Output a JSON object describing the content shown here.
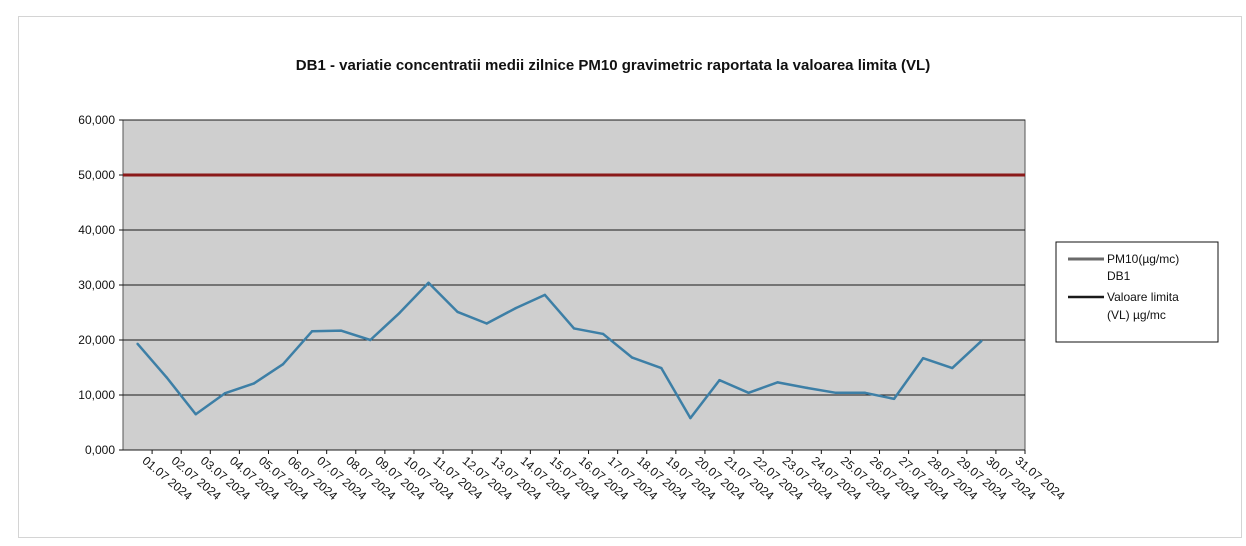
{
  "chart_data": {
    "type": "line",
    "title": "DB1 - variatie concentratii medii zilnice  PM10 gravimetric raportata la valoarea limita (VL)",
    "xlabel": "",
    "ylabel": "",
    "categories": [
      "01.07 2024",
      "02.07 2024",
      "03.07 2024",
      "04.07 2024",
      "05.07 2024",
      "06.07 2024",
      "07.07 2024",
      "08.07 2024",
      "09.07 2024",
      "10.07 2024",
      "11.07 2024",
      "12.07 2024",
      "13.07 2024",
      "14.07 2024",
      "15.07 2024",
      "16.07 2024",
      "17.07 2024",
      "18.07 2024",
      "19.07 2024",
      "20.07 2024",
      "21.07 2024",
      "22.07 2024",
      "23.07 2024",
      "24.07 2024",
      "25.07 2024",
      "26.07 2024",
      "27.07 2024",
      "28.07 2024",
      "29.07 2024",
      "30.07 2024",
      "31.07 2024"
    ],
    "ylim": [
      0,
      60
    ],
    "yticks": [
      "0,000",
      "10,000",
      "20,000",
      "30,000",
      "40,000",
      "50,000",
      "60,000"
    ],
    "grid": true,
    "legend_position": "right",
    "series": [
      {
        "name": "PM10(µg/mc) DB1",
        "legend_lines": [
          "PM10(µg/mc)",
          "DB1"
        ],
        "color": "#3d7fa6",
        "values": [
          19.3,
          13.2,
          6.5,
          10.3,
          12.1,
          15.6,
          21.6,
          21.7,
          20.0,
          24.9,
          30.4,
          25.1,
          23.0,
          25.8,
          28.2,
          22.1,
          21.1,
          16.8,
          14.9,
          5.8,
          12.7,
          10.4,
          12.3,
          11.3,
          10.4,
          10.4,
          9.3,
          16.7,
          14.9,
          19.8,
          null
        ]
      },
      {
        "name": "Valoare limita (VL) µg/mc",
        "legend_lines": [
          "Valoare limita",
          "(VL) µg/mc"
        ],
        "color": "#1a1a1a",
        "values": [
          50,
          50,
          50,
          50,
          50,
          50,
          50,
          50,
          50,
          50,
          50,
          50,
          50,
          50,
          50,
          50,
          50,
          50,
          50,
          50,
          50,
          50,
          50,
          50,
          50,
          50,
          50,
          50,
          50,
          50,
          50
        ]
      }
    ],
    "colors": {
      "plot_background": "#cfcfcf",
      "gridline": "#1a1a1a",
      "limit_line": "#8b1a1a"
    }
  }
}
